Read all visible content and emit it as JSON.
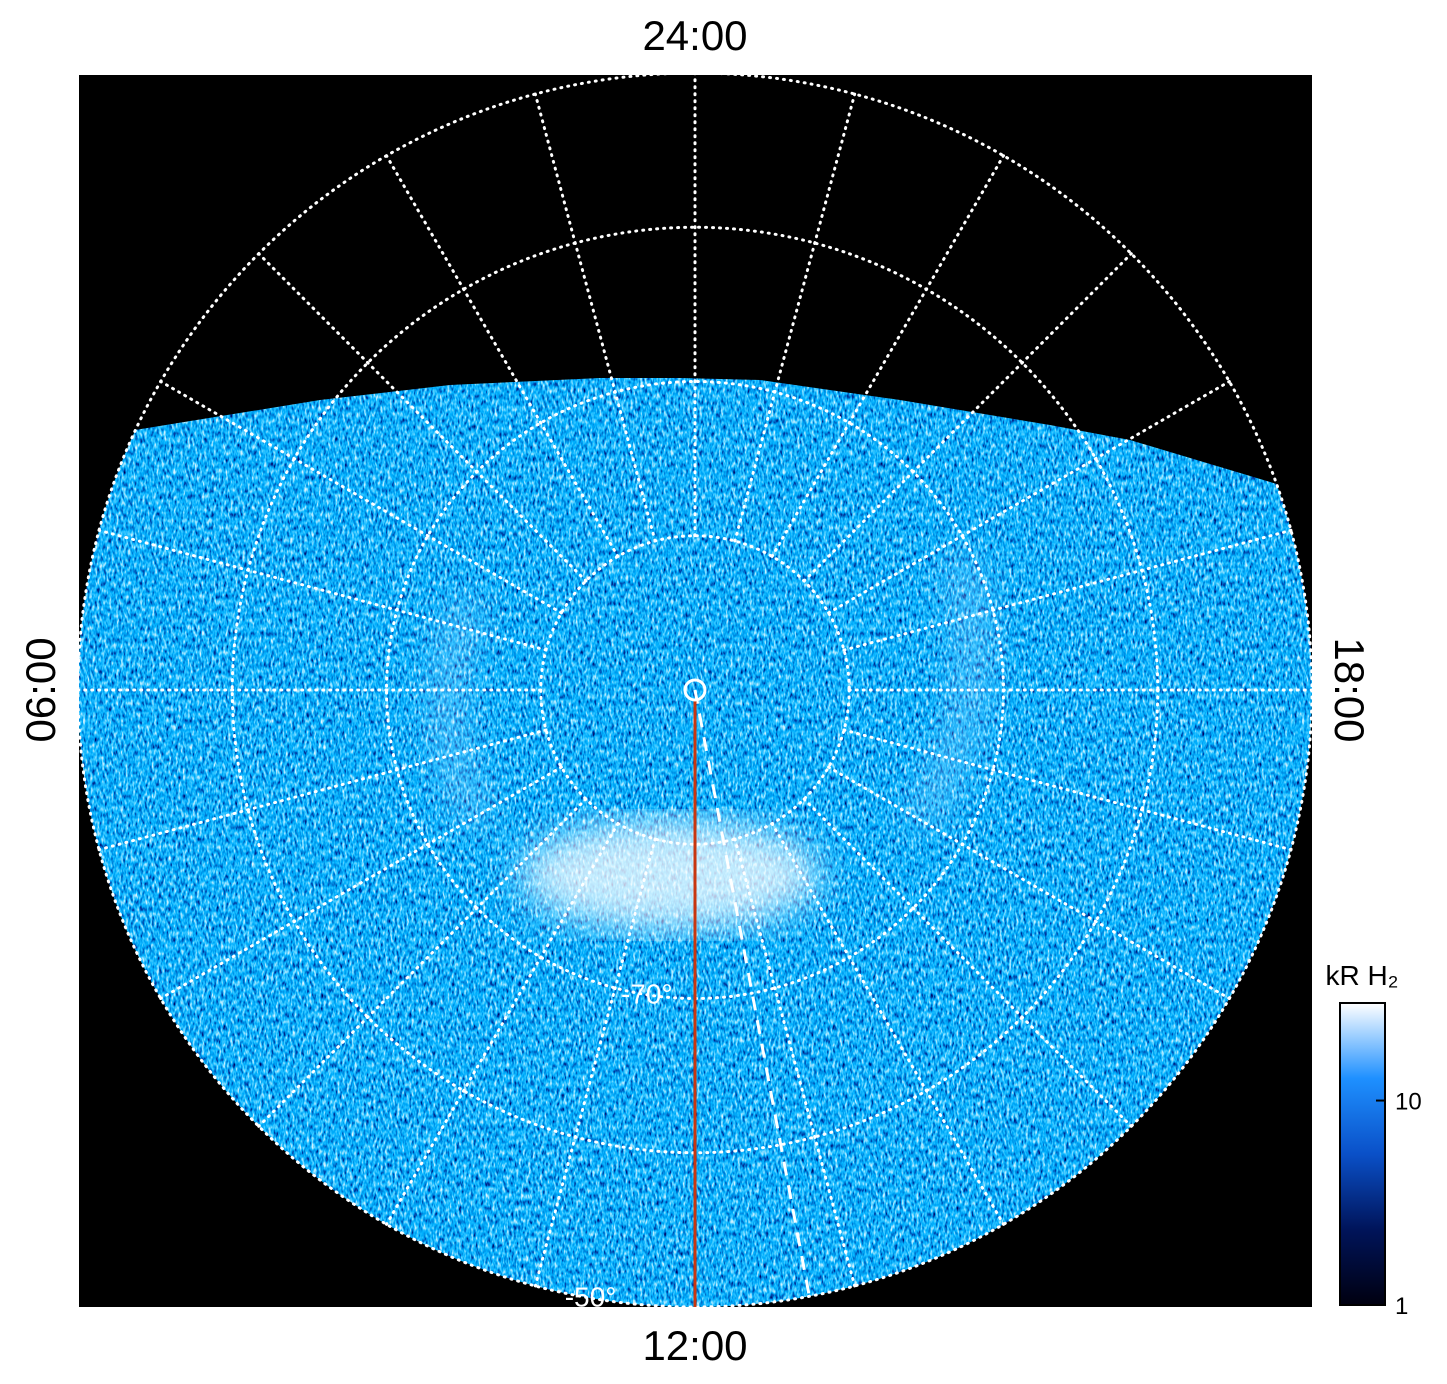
{
  "chart_data": {
    "type": "polar-image",
    "lt_labels": [
      {
        "value": 24,
        "label": "24:00"
      },
      {
        "value": 6,
        "label": "06:00"
      },
      {
        "value": 18,
        "label": "18:00"
      },
      {
        "value": 12,
        "label": "12:00"
      }
    ],
    "lt_grid": [
      0,
      1,
      2,
      3,
      4,
      5,
      6,
      7,
      8,
      9,
      10,
      11,
      12,
      13,
      14,
      15,
      16,
      17,
      18,
      19,
      20,
      21,
      22,
      23
    ],
    "rlim": [
      -90,
      -50
    ],
    "lat_grid": [
      -80,
      -70,
      -60,
      -50
    ],
    "lat_labels": [
      {
        "value": -70,
        "label": "-70°"
      },
      {
        "value": -50,
        "label": "-50°"
      }
    ],
    "colorbar": {
      "label": "kR H₂",
      "log": true,
      "lim": [
        1,
        30
      ],
      "ticks": [
        1,
        10
      ],
      "colors": [
        "#000010",
        "#00145a",
        "#0a50c8",
        "#1e90ff",
        "#ffffff"
      ]
    }
  }
}
